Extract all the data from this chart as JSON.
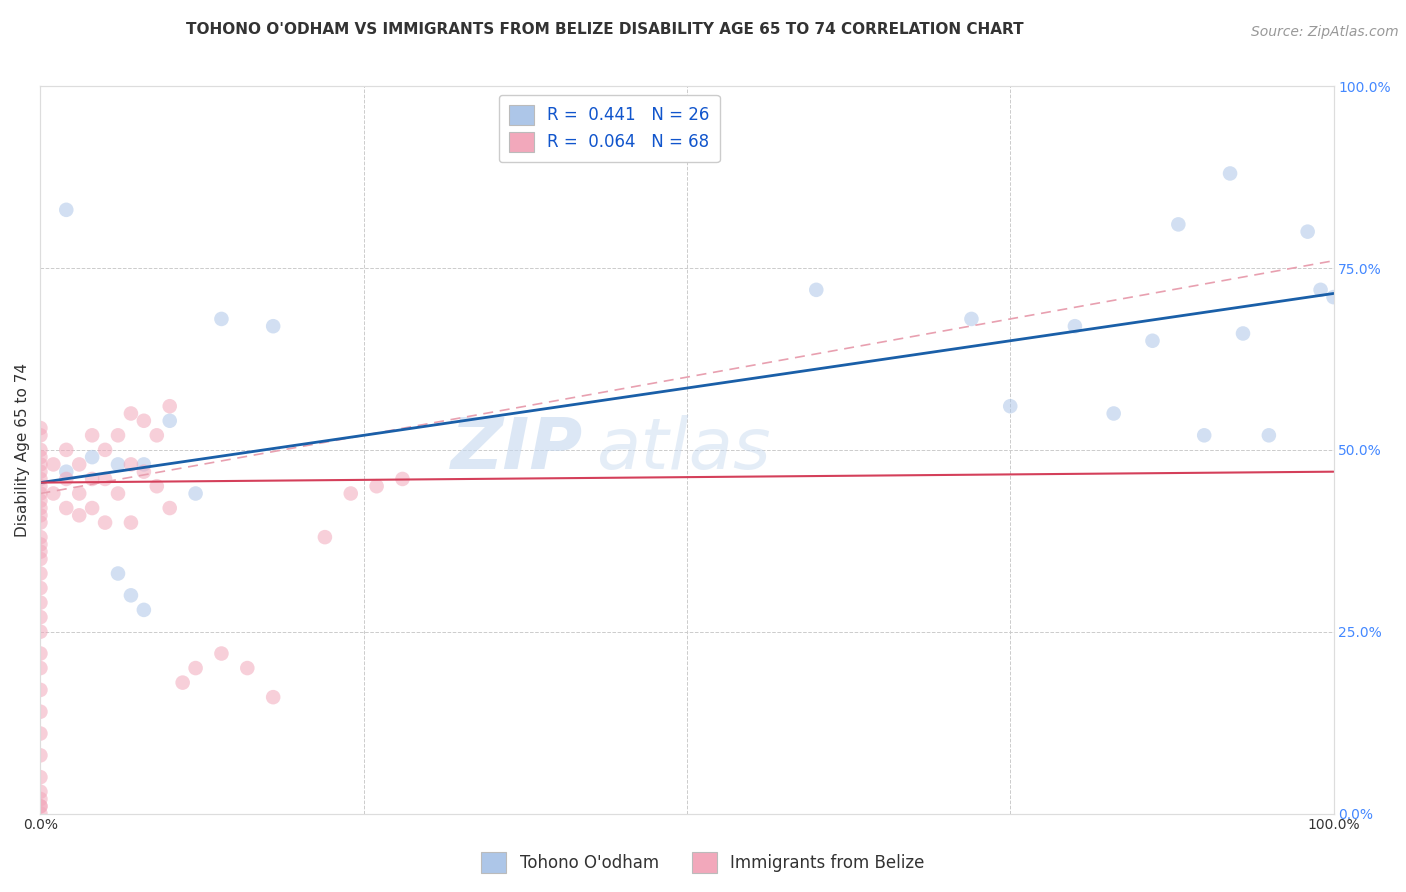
{
  "title": "TOHONO O'ODHAM VS IMMIGRANTS FROM BELIZE DISABILITY AGE 65 TO 74 CORRELATION CHART",
  "source": "Source: ZipAtlas.com",
  "ylabel": "Disability Age 65 to 74",
  "legend_labels": [
    "Tohono O'odham",
    "Immigrants from Belize"
  ],
  "r_blue": 0.441,
  "n_blue": 26,
  "r_pink": 0.064,
  "n_pink": 68,
  "blue_color": "#adc6e8",
  "pink_color": "#f2a8bb",
  "blue_line_color": "#1a5fa8",
  "pink_line_color": "#d43f5a",
  "pink_dash_color": "#e8a0b0",
  "watermark": "ZIPatlas",
  "xlim": [
    0,
    1.0
  ],
  "ylim": [
    0,
    1.0
  ],
  "xticks": [
    0.0,
    0.25,
    0.5,
    0.75,
    1.0
  ],
  "yticks": [
    0.0,
    0.25,
    0.5,
    0.75,
    1.0
  ],
  "xticklabels": [
    "0.0%",
    "",
    "",
    "",
    "100.0%"
  ],
  "yticklabels_right": [
    "0.0%",
    "25.0%",
    "50.0%",
    "75.0%",
    "100.0%"
  ],
  "blue_points_x": [
    0.02,
    0.02,
    0.04,
    0.06,
    0.06,
    0.07,
    0.08,
    0.08,
    0.1,
    0.12,
    0.14,
    0.18,
    0.6,
    0.72,
    0.75,
    0.8,
    0.83,
    0.86,
    0.88,
    0.9,
    0.92,
    0.93,
    0.95,
    0.98,
    0.99,
    1.0
  ],
  "blue_points_y": [
    0.83,
    0.47,
    0.49,
    0.48,
    0.33,
    0.3,
    0.48,
    0.28,
    0.54,
    0.44,
    0.68,
    0.67,
    0.72,
    0.68,
    0.56,
    0.67,
    0.55,
    0.65,
    0.81,
    0.52,
    0.88,
    0.66,
    0.52,
    0.8,
    0.72,
    0.71
  ],
  "pink_points_x": [
    0.0,
    0.0,
    0.0,
    0.0,
    0.0,
    0.0,
    0.0,
    0.0,
    0.0,
    0.0,
    0.0,
    0.0,
    0.0,
    0.0,
    0.0,
    0.0,
    0.0,
    0.0,
    0.0,
    0.0,
    0.0,
    0.0,
    0.0,
    0.0,
    0.0,
    0.0,
    0.0,
    0.0,
    0.0,
    0.0,
    0.0,
    0.0,
    0.0,
    0.0,
    0.01,
    0.01,
    0.02,
    0.02,
    0.02,
    0.03,
    0.03,
    0.03,
    0.04,
    0.04,
    0.04,
    0.05,
    0.05,
    0.05,
    0.06,
    0.06,
    0.07,
    0.07,
    0.07,
    0.08,
    0.08,
    0.09,
    0.09,
    0.1,
    0.1,
    0.11,
    0.12,
    0.14,
    0.16,
    0.18,
    0.22,
    0.24,
    0.26,
    0.28
  ],
  "pink_points_y": [
    0.53,
    0.52,
    0.5,
    0.49,
    0.48,
    0.47,
    0.46,
    0.45,
    0.44,
    0.43,
    0.42,
    0.41,
    0.4,
    0.38,
    0.37,
    0.36,
    0.35,
    0.33,
    0.31,
    0.29,
    0.27,
    0.25,
    0.22,
    0.2,
    0.17,
    0.14,
    0.11,
    0.08,
    0.05,
    0.03,
    0.01,
    0.0,
    0.01,
    0.02,
    0.48,
    0.44,
    0.5,
    0.46,
    0.42,
    0.48,
    0.44,
    0.41,
    0.52,
    0.46,
    0.42,
    0.5,
    0.46,
    0.4,
    0.52,
    0.44,
    0.55,
    0.48,
    0.4,
    0.54,
    0.47,
    0.52,
    0.45,
    0.56,
    0.42,
    0.18,
    0.2,
    0.22,
    0.2,
    0.16,
    0.38,
    0.44,
    0.45,
    0.46
  ],
  "blue_line_start_y": 0.455,
  "blue_line_end_y": 0.715,
  "pink_line_start_y": 0.455,
  "pink_line_end_y": 0.455,
  "title_fontsize": 11,
  "axis_label_fontsize": 11,
  "tick_fontsize": 10,
  "legend_fontsize": 12,
  "source_fontsize": 10,
  "marker_size": 110,
  "marker_alpha": 0.55,
  "background_color": "#ffffff",
  "grid_color": "#cccccc",
  "right_tick_color": "#4488ff",
  "text_color": "#333333"
}
